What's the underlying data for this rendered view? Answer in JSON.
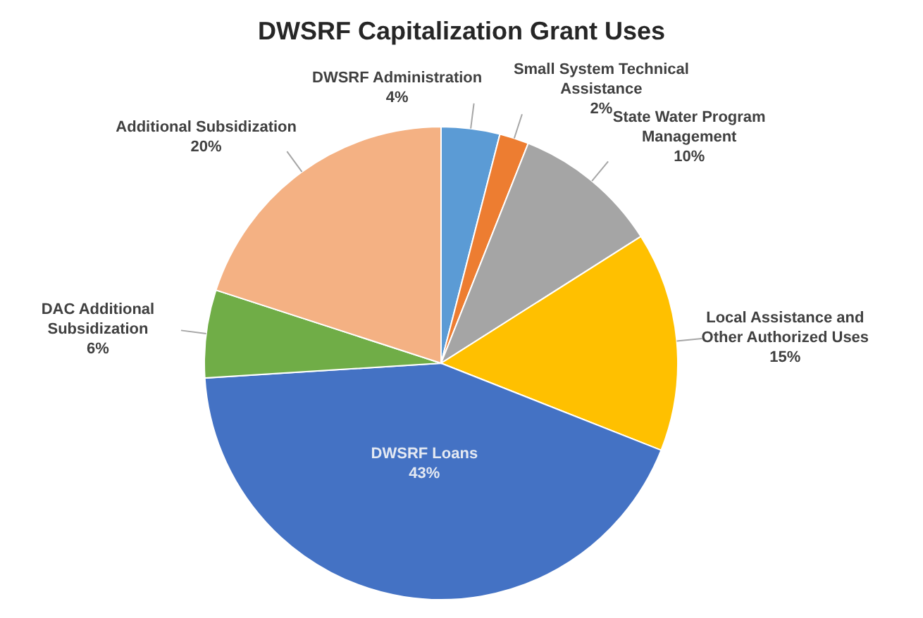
{
  "chart_data": {
    "type": "pie",
    "title": "DWSRF Capitalization Grant Uses",
    "categories": [
      "DWSRF Administration",
      "Small System Technical Assistance",
      "State Water Program Management",
      "Local Assistance and Other Authorized Uses",
      "DWSRF Loans",
      "DAC Additional Subsidization",
      "Additional Subsidization"
    ],
    "values": [
      4,
      2,
      10,
      15,
      43,
      6,
      20
    ],
    "value_labels": [
      "4%",
      "2%",
      "10%",
      "15%",
      "43%",
      "6%",
      "20%"
    ],
    "colors": [
      "#5b9bd5",
      "#ed7d31",
      "#a5a5a5",
      "#ffc000",
      "#4472c4",
      "#70ad47",
      "#f4b183"
    ]
  }
}
